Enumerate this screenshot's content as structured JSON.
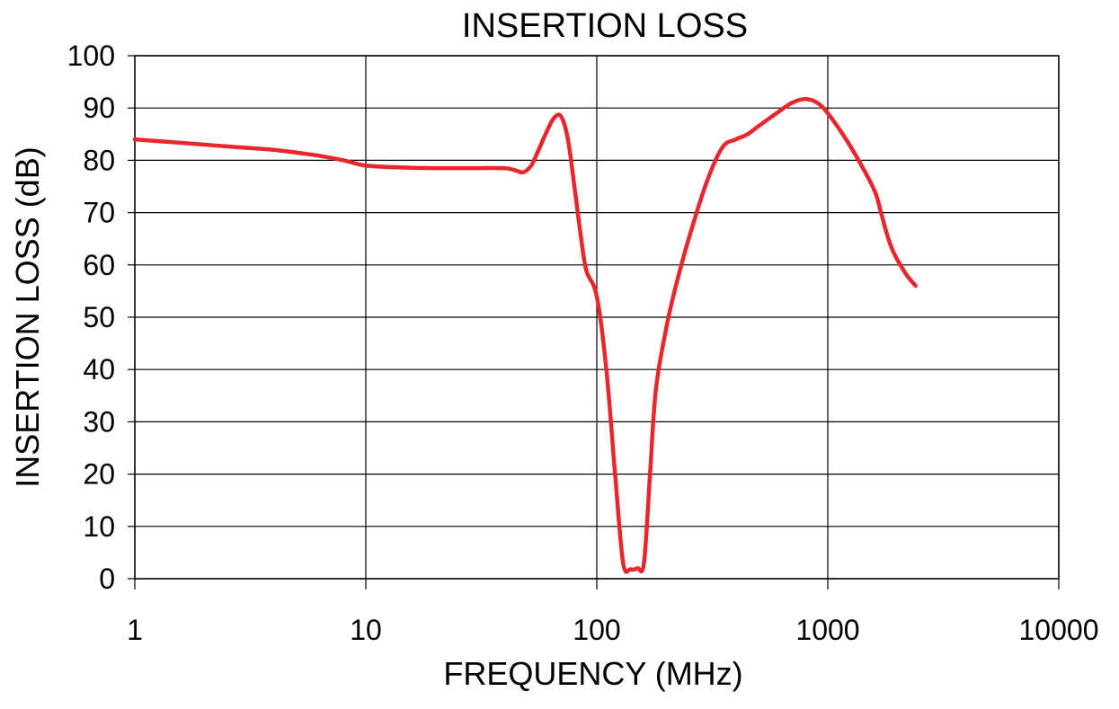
{
  "chart_data": {
    "type": "line",
    "title": "INSERTION LOSS",
    "xlabel": "FREQUENCY (MHz)",
    "ylabel": "INSERTION LOSS (dB)",
    "xscale": "log",
    "xlim": [
      1,
      10000
    ],
    "ylim": [
      0,
      100
    ],
    "grid": true,
    "legend": "none",
    "x_ticks": [
      "1",
      "10",
      "100",
      "1000",
      "10000"
    ],
    "y_ticks": [
      "0",
      "10",
      "20",
      "30",
      "40",
      "50",
      "60",
      "70",
      "80",
      "90",
      "100"
    ],
    "colors": {
      "series": "#e8262b",
      "grid": "#000000",
      "background": "#ffffff"
    },
    "series": [
      {
        "x": [
          1,
          2,
          3,
          4,
          6,
          8,
          10,
          15,
          20,
          30,
          40,
          45,
          48,
          52,
          56,
          60,
          65,
          70,
          75,
          80,
          85,
          90,
          100,
          110,
          120,
          130,
          140,
          150,
          160,
          170,
          180,
          200,
          220,
          250,
          300,
          350,
          400,
          450,
          500,
          600,
          700,
          800,
          900,
          1000,
          1200,
          1400,
          1600,
          1700,
          1800,
          1900,
          2000,
          2200,
          2400
        ],
        "y": [
          84,
          83,
          82.4,
          82,
          81,
          80,
          79,
          78.6,
          78.5,
          78.5,
          78.5,
          78,
          77.7,
          79,
          82,
          85,
          88,
          88.4,
          84,
          75,
          66,
          59,
          54,
          40,
          20,
          3,
          1.8,
          2,
          3,
          20,
          36,
          48,
          56,
          65,
          76,
          82.5,
          84,
          85,
          86.5,
          89,
          91,
          91.7,
          91,
          89,
          84,
          79,
          74,
          70,
          66,
          63,
          61,
          58,
          56
        ]
      }
    ]
  }
}
